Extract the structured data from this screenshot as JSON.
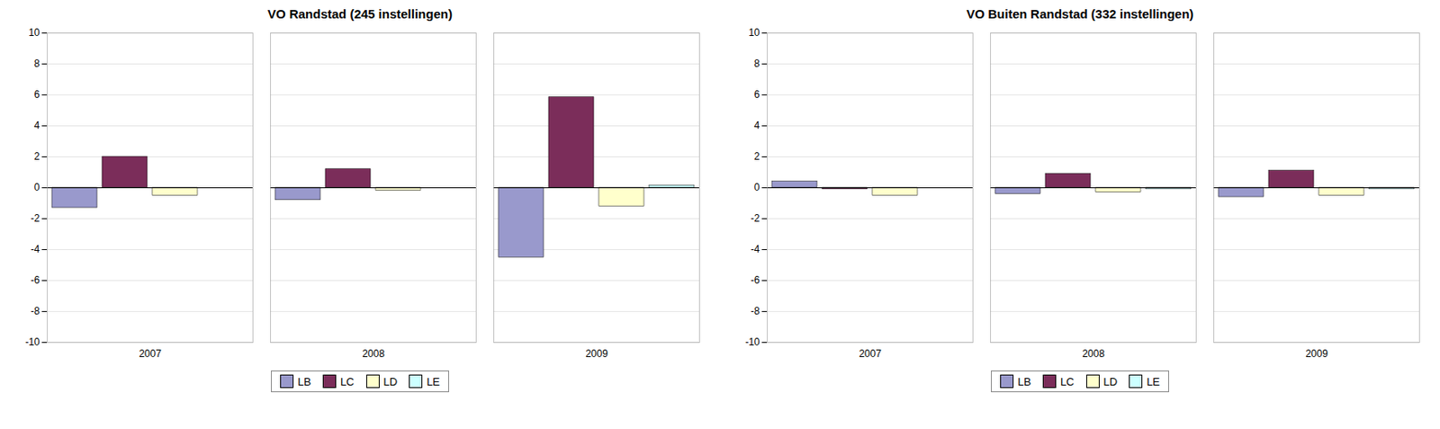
{
  "chart_data": [
    {
      "type": "bar",
      "title": "VO Randstad (245 instellingen)",
      "categories": [
        "2007",
        "2008",
        "2009"
      ],
      "series": [
        {
          "name": "LB",
          "color": "#9999CC",
          "values": [
            -1.3,
            -0.8,
            -4.5
          ]
        },
        {
          "name": "LC",
          "color": "#7B2D5A",
          "values": [
            2.0,
            1.2,
            5.85
          ]
        },
        {
          "name": "LD",
          "color": "#FFFFCC",
          "values": [
            -0.5,
            -0.2,
            -1.2
          ]
        },
        {
          "name": "LE",
          "color": "#CCFFFF",
          "values": [
            0.0,
            0.0,
            0.15
          ]
        }
      ],
      "ylim": [
        -10,
        10
      ],
      "yticks": [
        -10,
        -8,
        -6,
        -4,
        -2,
        0,
        2,
        4,
        6,
        8,
        10
      ],
      "grid": true,
      "legend": "bottom"
    },
    {
      "type": "bar",
      "title": "VO Buiten Randstad (332 instellingen)",
      "categories": [
        "2007",
        "2008",
        "2009"
      ],
      "series": [
        {
          "name": "LB",
          "color": "#9999CC",
          "values": [
            0.4,
            -0.4,
            -0.6
          ]
        },
        {
          "name": "LC",
          "color": "#7B2D5A",
          "values": [
            -0.1,
            0.9,
            1.1
          ]
        },
        {
          "name": "LD",
          "color": "#FFFFCC",
          "values": [
            -0.5,
            -0.3,
            -0.5
          ]
        },
        {
          "name": "LE",
          "color": "#CCFFFF",
          "values": [
            0.0,
            -0.1,
            -0.1
          ]
        }
      ],
      "ylim": [
        -10,
        10
      ],
      "yticks": [
        -10,
        -8,
        -6,
        -4,
        -2,
        0,
        2,
        4,
        6,
        8,
        10
      ],
      "grid": true,
      "legend": "bottom"
    }
  ]
}
